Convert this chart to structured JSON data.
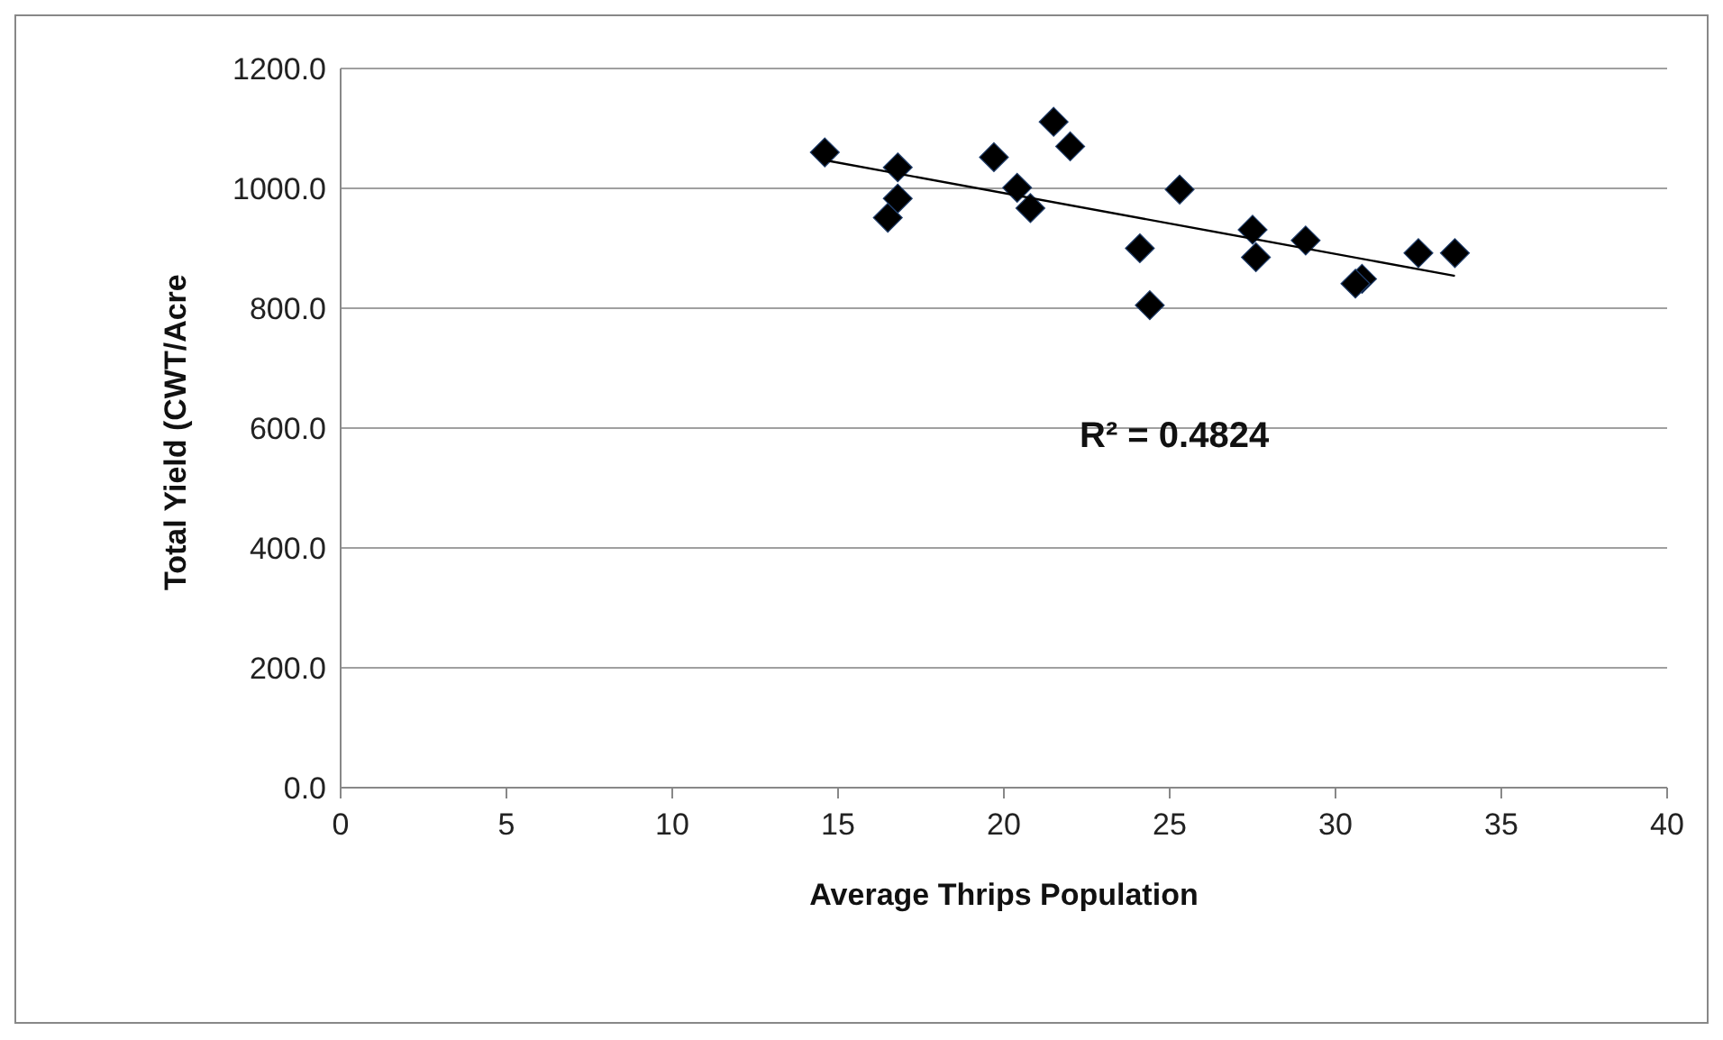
{
  "chart_data": {
    "type": "scatter",
    "xlabel": "Average Thrips Population",
    "ylabel": "Total Yield (CWT/Acre",
    "xlim": [
      0,
      40
    ],
    "xticks": [
      0,
      5,
      10,
      15,
      20,
      25,
      30,
      35,
      40
    ],
    "ylim": [
      0,
      1200
    ],
    "yticks": [
      {
        "value": 0,
        "label": "0.0"
      },
      {
        "value": 200,
        "label": "200.0"
      },
      {
        "value": 400,
        "label": "400.0"
      },
      {
        "value": 600,
        "label": "600.0"
      },
      {
        "value": 800,
        "label": "800.0"
      },
      {
        "value": 1000,
        "label": "1000.0"
      },
      {
        "value": 1200,
        "label": "1200.0"
      }
    ],
    "grid": "y",
    "marker": "diamond",
    "annotations": [
      "R² = 0.4824"
    ],
    "series": [
      {
        "color": "#000000",
        "x": [
          14.6,
          16.8,
          16.8,
          16.5,
          19.7,
          20.4,
          20.8,
          21.5,
          22.0,
          25.3,
          24.1,
          24.4,
          27.5,
          27.6,
          29.1,
          30.8,
          30.6,
          32.5,
          33.6
        ],
        "values": [
          1060,
          1035,
          983,
          951,
          1052,
          1001,
          967,
          1111,
          1070,
          998,
          900,
          805,
          931,
          885,
          913,
          849,
          841,
          892,
          892
        ]
      },
      {
        "type": "line",
        "color": "#000000",
        "marker": "none",
        "x": [
          14.6,
          33.6
        ],
        "values": [
          1047,
          854
        ]
      }
    ]
  }
}
